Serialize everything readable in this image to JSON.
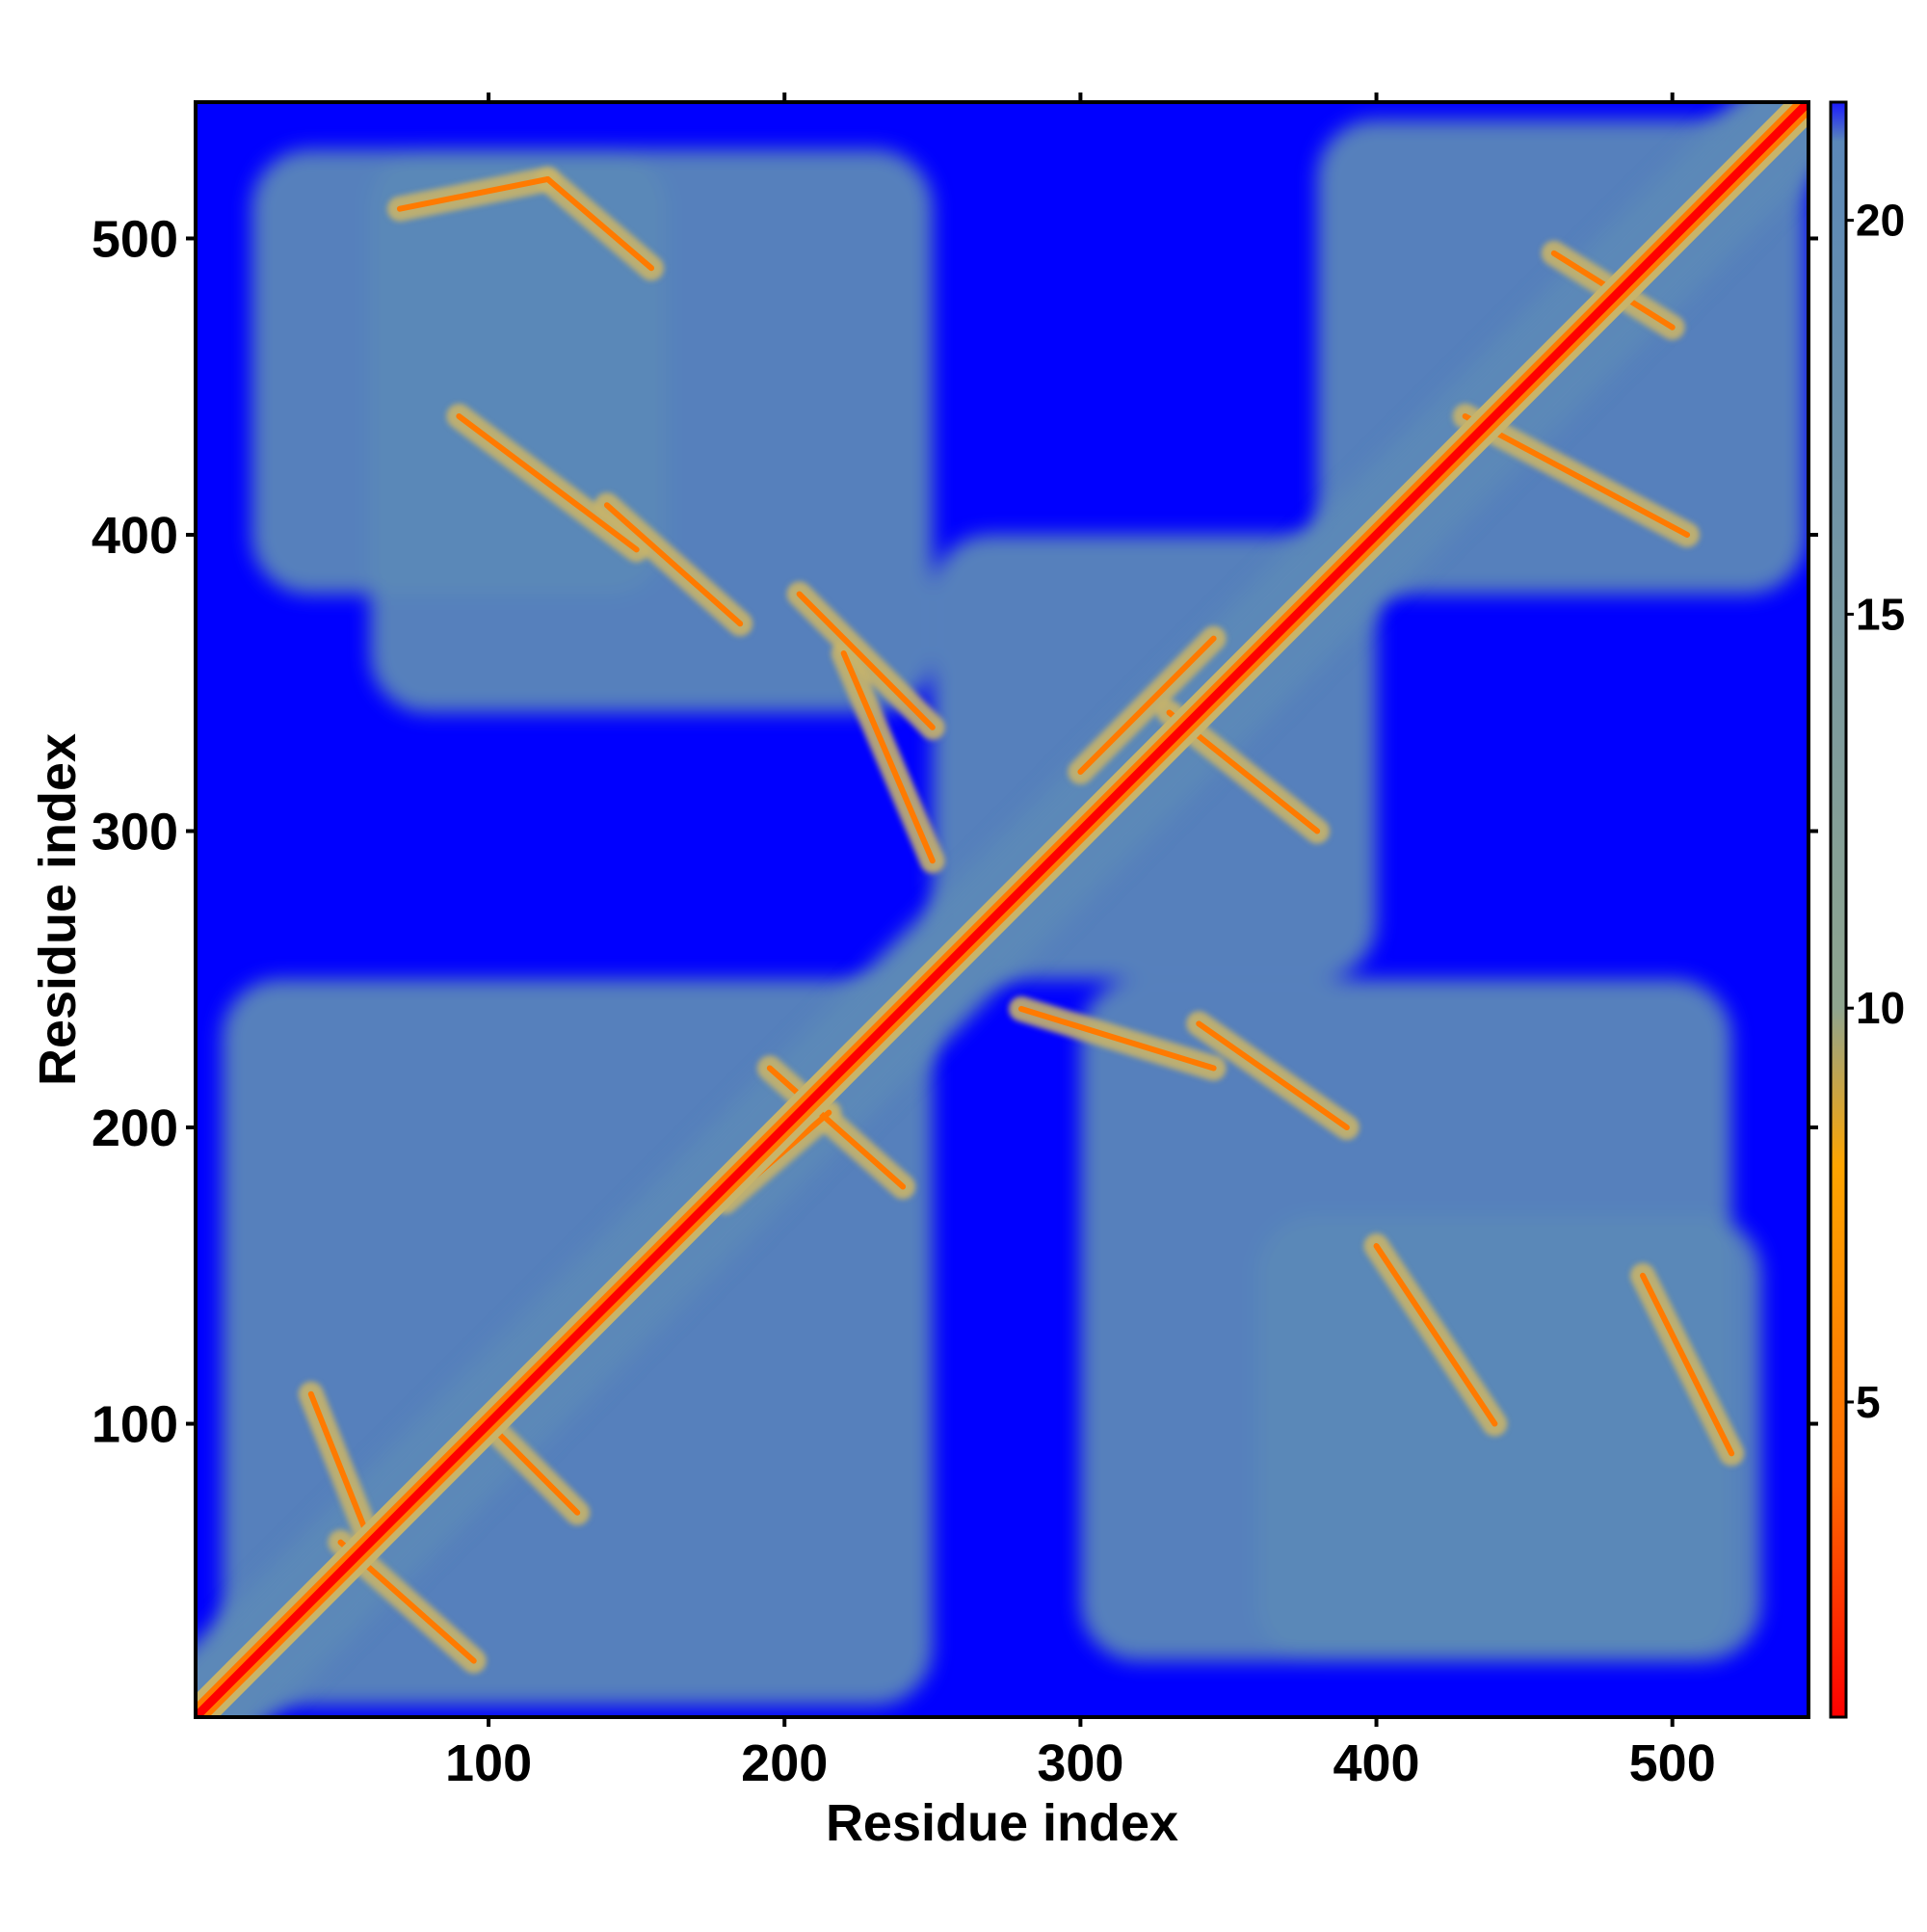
{
  "chart_data": {
    "type": "heatmap",
    "title": "",
    "xlabel": "Residue index",
    "ylabel": "Residue index",
    "xlim": [
      1,
      546
    ],
    "ylim": [
      1,
      546
    ],
    "x_ticks": [
      100,
      200,
      300,
      400,
      500
    ],
    "y_ticks": [
      100,
      200,
      300,
      400,
      500
    ],
    "grid": false,
    "colorbar": {
      "range": [
        1,
        21.5
      ],
      "ticks": [
        5,
        10,
        15,
        20
      ],
      "colors": [
        "#ff0000",
        "#ff6a00",
        "#ffa500",
        "#8fa58f",
        "#5b88b8",
        "#1a1aff"
      ],
      "breaks": [
        1,
        4,
        8,
        10,
        21,
        21.5
      ]
    },
    "colors": {
      "background": "#0000ff",
      "medium_distance": "#5b88b8",
      "near_contact": "#c8b46a",
      "contact": "#ff7a00",
      "diagonal": "#ff0000"
    },
    "contact_map": {
      "diagonal": {
        "from": 1,
        "to": 546,
        "color": "#ff0000"
      },
      "domains": [
        {
          "x": [
            10,
            250
          ],
          "y": [
            5,
            250
          ]
        },
        {
          "x": [
            250,
            400
          ],
          "y": [
            250,
            400
          ]
        },
        {
          "x": [
            380,
            545
          ],
          "y": [
            380,
            540
          ]
        },
        {
          "x": [
            60,
            250
          ],
          "y": [
            340,
            530
          ]
        },
        {
          "x": [
            300,
            520
          ],
          "y": [
            20,
            250
          ]
        },
        {
          "x": [
            20,
            160
          ],
          "y": [
            380,
            530
          ]
        },
        {
          "x": [
            360,
            530
          ],
          "y": [
            20,
            170
          ]
        }
      ],
      "contact_lines": [
        {
          "from": [
            50,
            60
          ],
          "to": [
            95,
            20
          ]
        },
        {
          "from": [
            100,
            100
          ],
          "to": [
            130,
            70
          ]
        },
        {
          "from": [
            180,
            175
          ],
          "to": [
            215,
            205
          ]
        },
        {
          "from": [
            195,
            220
          ],
          "to": [
            240,
            180
          ]
        },
        {
          "from": [
            205,
            380
          ],
          "to": [
            250,
            335
          ]
        },
        {
          "from": [
            220,
            360
          ],
          "to": [
            250,
            290
          ]
        },
        {
          "from": [
            280,
            240
          ],
          "to": [
            345,
            220
          ]
        },
        {
          "from": [
            340,
            235
          ],
          "to": [
            390,
            200
          ]
        },
        {
          "from": [
            300,
            320
          ],
          "to": [
            345,
            365
          ]
        },
        {
          "from": [
            330,
            340
          ],
          "to": [
            380,
            300
          ]
        },
        {
          "from": [
            90,
            440
          ],
          "to": [
            150,
            395
          ]
        },
        {
          "from": [
            140,
            410
          ],
          "to": [
            185,
            370
          ]
        },
        {
          "from": [
            430,
            440
          ],
          "to": [
            505,
            400
          ]
        },
        {
          "from": [
            460,
            495
          ],
          "to": [
            500,
            470
          ]
        },
        {
          "from": [
            70,
            510
          ],
          "to": [
            120,
            520
          ]
        },
        {
          "from": [
            120,
            520
          ],
          "to": [
            155,
            490
          ]
        },
        {
          "from": [
            400,
            160
          ],
          "to": [
            440,
            100
          ]
        },
        {
          "from": [
            490,
            150
          ],
          "to": [
            520,
            90
          ]
        },
        {
          "from": [
            40,
            110
          ],
          "to": [
            60,
            60
          ]
        }
      ]
    }
  }
}
